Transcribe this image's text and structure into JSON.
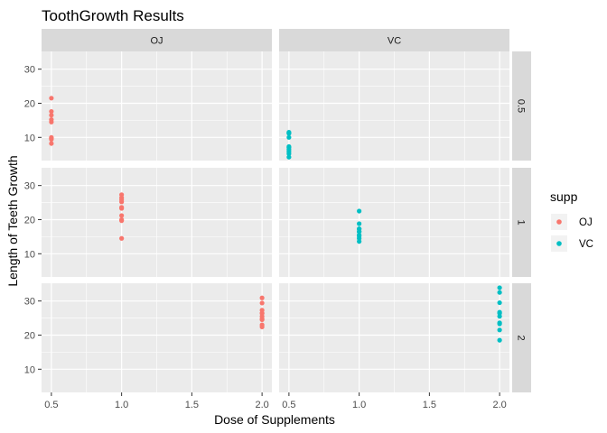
{
  "chart_data": {
    "type": "scatter",
    "title": "ToothGrowth Results",
    "xlabel": "Dose of Supplements",
    "ylabel": "Length of Teeth Growth",
    "xlim": [
      0.43,
      2.07
    ],
    "ylim": [
      3.2,
      35.2
    ],
    "x_ticks": [
      0.5,
      1.0,
      1.5,
      2.0
    ],
    "x_tick_labels": [
      "0.5",
      "1.0",
      "1.5",
      "2.0"
    ],
    "y_ticks": [
      10,
      20,
      30
    ],
    "y_tick_labels": [
      "10",
      "20",
      "30"
    ],
    "facet_columns": [
      "OJ",
      "VC"
    ],
    "facet_rows": [
      "0.5",
      "1",
      "2"
    ],
    "grid": true,
    "legend": {
      "title": "supp",
      "position": "right",
      "entries": [
        {
          "label": "OJ",
          "color": "#F8766D"
        },
        {
          "label": "VC",
          "color": "#00BFC4"
        }
      ]
    },
    "colors": {
      "OJ": "#F8766D",
      "VC": "#00BFC4",
      "panel": "#EBEBEB",
      "strip": "#D9D9D9"
    },
    "series": [
      {
        "name": "OJ",
        "points": [
          {
            "dose": 0.5,
            "len": 15.2
          },
          {
            "dose": 0.5,
            "len": 21.5
          },
          {
            "dose": 0.5,
            "len": 17.6
          },
          {
            "dose": 0.5,
            "len": 9.7
          },
          {
            "dose": 0.5,
            "len": 14.5
          },
          {
            "dose": 0.5,
            "len": 10.0
          },
          {
            "dose": 0.5,
            "len": 8.2
          },
          {
            "dose": 0.5,
            "len": 9.4
          },
          {
            "dose": 0.5,
            "len": 16.5
          },
          {
            "dose": 0.5,
            "len": 9.7
          },
          {
            "dose": 1.0,
            "len": 19.7
          },
          {
            "dose": 1.0,
            "len": 23.3
          },
          {
            "dose": 1.0,
            "len": 23.6
          },
          {
            "dose": 1.0,
            "len": 26.4
          },
          {
            "dose": 1.0,
            "len": 20.0
          },
          {
            "dose": 1.0,
            "len": 25.2
          },
          {
            "dose": 1.0,
            "len": 25.8
          },
          {
            "dose": 1.0,
            "len": 21.2
          },
          {
            "dose": 1.0,
            "len": 14.5
          },
          {
            "dose": 1.0,
            "len": 27.3
          },
          {
            "dose": 2.0,
            "len": 25.5
          },
          {
            "dose": 2.0,
            "len": 26.4
          },
          {
            "dose": 2.0,
            "len": 22.4
          },
          {
            "dose": 2.0,
            "len": 24.5
          },
          {
            "dose": 2.0,
            "len": 24.8
          },
          {
            "dose": 2.0,
            "len": 30.9
          },
          {
            "dose": 2.0,
            "len": 26.4
          },
          {
            "dose": 2.0,
            "len": 27.3
          },
          {
            "dose": 2.0,
            "len": 29.4
          },
          {
            "dose": 2.0,
            "len": 23.0
          }
        ]
      },
      {
        "name": "VC",
        "points": [
          {
            "dose": 0.5,
            "len": 4.2
          },
          {
            "dose": 0.5,
            "len": 11.5
          },
          {
            "dose": 0.5,
            "len": 7.3
          },
          {
            "dose": 0.5,
            "len": 5.8
          },
          {
            "dose": 0.5,
            "len": 6.4
          },
          {
            "dose": 0.5,
            "len": 10.0
          },
          {
            "dose": 0.5,
            "len": 11.2
          },
          {
            "dose": 0.5,
            "len": 11.2
          },
          {
            "dose": 0.5,
            "len": 5.2
          },
          {
            "dose": 0.5,
            "len": 7.0
          },
          {
            "dose": 1.0,
            "len": 16.5
          },
          {
            "dose": 1.0,
            "len": 16.5
          },
          {
            "dose": 1.0,
            "len": 15.2
          },
          {
            "dose": 1.0,
            "len": 17.3
          },
          {
            "dose": 1.0,
            "len": 22.5
          },
          {
            "dose": 1.0,
            "len": 17.3
          },
          {
            "dose": 1.0,
            "len": 13.6
          },
          {
            "dose": 1.0,
            "len": 14.5
          },
          {
            "dose": 1.0,
            "len": 18.8
          },
          {
            "dose": 1.0,
            "len": 15.5
          },
          {
            "dose": 2.0,
            "len": 23.6
          },
          {
            "dose": 2.0,
            "len": 18.5
          },
          {
            "dose": 2.0,
            "len": 33.9
          },
          {
            "dose": 2.0,
            "len": 25.5
          },
          {
            "dose": 2.0,
            "len": 26.4
          },
          {
            "dose": 2.0,
            "len": 32.5
          },
          {
            "dose": 2.0,
            "len": 26.7
          },
          {
            "dose": 2.0,
            "len": 21.5
          },
          {
            "dose": 2.0,
            "len": 23.3
          },
          {
            "dose": 2.0,
            "len": 29.5
          }
        ]
      }
    ]
  }
}
